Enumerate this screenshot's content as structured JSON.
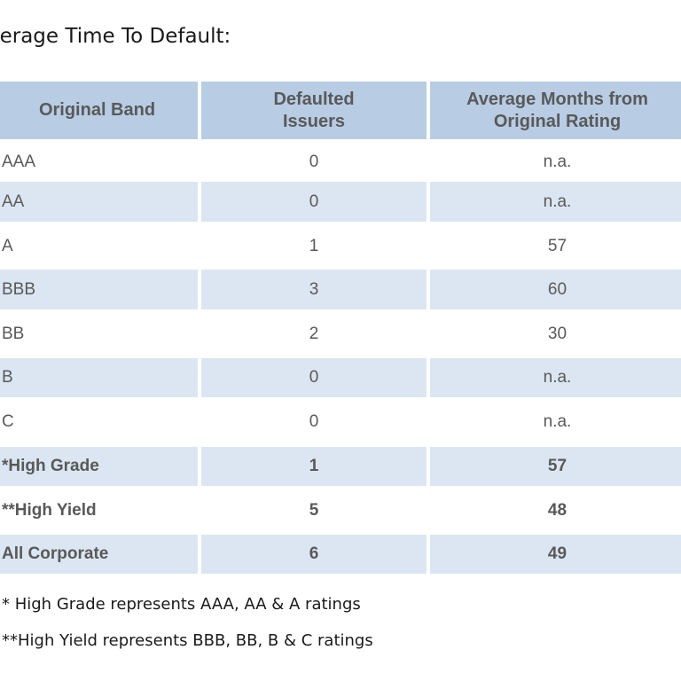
{
  "title": "verage Time To Default:",
  "header": {
    "band": "Original Band",
    "issuers": "Defaulted Issuers",
    "months": "Average Months from Original Rating"
  },
  "rows": [
    {
      "band": "AAA",
      "issuers": "0",
      "months": "n.a."
    },
    {
      "band": "AA",
      "issuers": "0",
      "months": "n.a."
    },
    {
      "band": "A",
      "issuers": "1",
      "months": "57"
    },
    {
      "band": "BBB",
      "issuers": "3",
      "months": "60"
    },
    {
      "band": "BB",
      "issuers": "2",
      "months": "30"
    },
    {
      "band": "B",
      "issuers": "0",
      "months": "n.a."
    },
    {
      "band": "C",
      "issuers": "0",
      "months": "n.a."
    },
    {
      "band": "*High Grade",
      "issuers": "1",
      "months": "57"
    },
    {
      "band": "**High Yield",
      "issuers": "5",
      "months": "48"
    },
    {
      "band": "All Corporate",
      "issuers": "6",
      "months": "49"
    }
  ],
  "notes": [
    "* High Grade represents AAA, AA & A ratings",
    "**High Yield represents BBB, BB, B & C ratings"
  ],
  "colors": {
    "header_bg": "#b8cce4",
    "stripe_bg": "#dce6f2",
    "text": "#595959"
  }
}
